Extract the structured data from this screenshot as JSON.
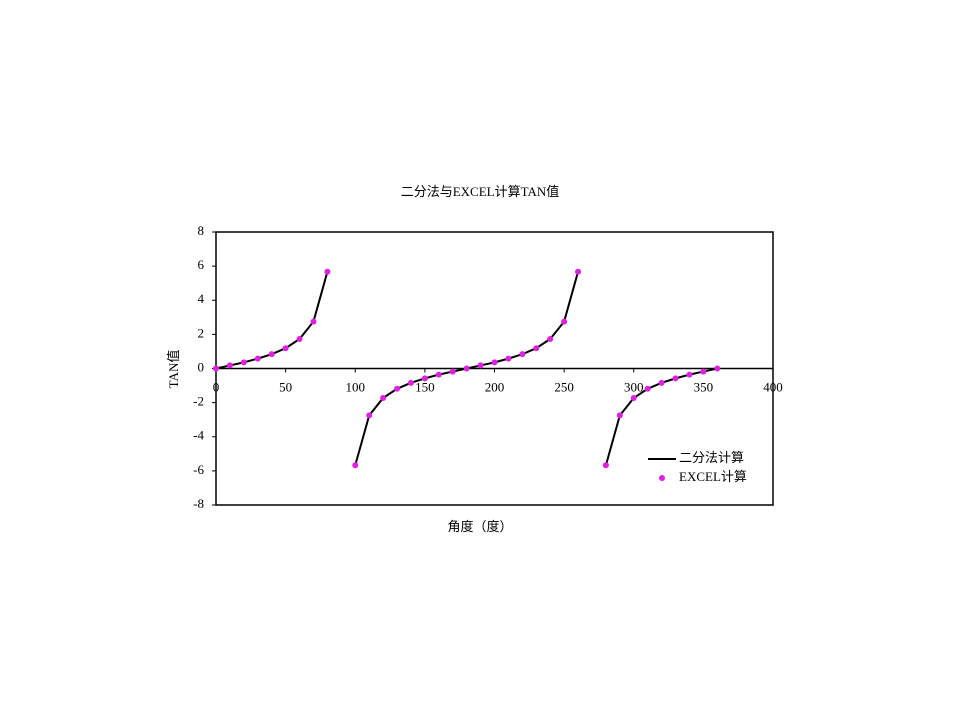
{
  "chart_data": {
    "type": "line",
    "title": "二分法与EXCEL计算TAN值",
    "x_label": "角度（度）",
    "y_label": "TAN值",
    "x": [
      0,
      10,
      20,
      30,
      40,
      50,
      60,
      70,
      80,
      90,
      100,
      110,
      120,
      130,
      140,
      150,
      160,
      170,
      180,
      190,
      200,
      210,
      220,
      230,
      240,
      250,
      260,
      270,
      280,
      290,
      300,
      310,
      320,
      330,
      340,
      350,
      360
    ],
    "series": [
      {
        "name": "二分法计算",
        "color": "#000000",
        "style": "line",
        "values": [
          0,
          0.18,
          0.36,
          0.58,
          0.84,
          1.19,
          1.73,
          2.75,
          5.67,
          null,
          -5.67,
          -2.75,
          -1.73,
          -1.19,
          -0.84,
          -0.58,
          -0.36,
          -0.18,
          0,
          0.18,
          0.36,
          0.58,
          0.84,
          1.19,
          1.73,
          2.75,
          5.67,
          null,
          -5.67,
          -2.75,
          -1.73,
          -1.19,
          -0.84,
          -0.58,
          -0.36,
          -0.18,
          0
        ]
      },
      {
        "name": "EXCEL计算",
        "color": "#e020e0",
        "style": "marker",
        "values": [
          0,
          0.18,
          0.36,
          0.58,
          0.84,
          1.19,
          1.73,
          2.75,
          5.67,
          null,
          -5.67,
          -2.75,
          -1.73,
          -1.19,
          -0.84,
          -0.58,
          -0.36,
          -0.18,
          0,
          0.18,
          0.36,
          0.58,
          0.84,
          1.19,
          1.73,
          2.75,
          5.67,
          null,
          -5.67,
          -2.75,
          -1.73,
          -1.19,
          -0.84,
          -0.58,
          -0.36,
          -0.18,
          0
        ]
      }
    ],
    "xlim": [
      0,
      400
    ],
    "xticks": [
      0,
      50,
      100,
      150,
      200,
      250,
      300,
      350,
      400
    ],
    "ylim": [
      -8,
      8
    ],
    "yticks": [
      -8,
      -6,
      -4,
      -2,
      0,
      2,
      4,
      6,
      8
    ],
    "legend": "lower right"
  }
}
